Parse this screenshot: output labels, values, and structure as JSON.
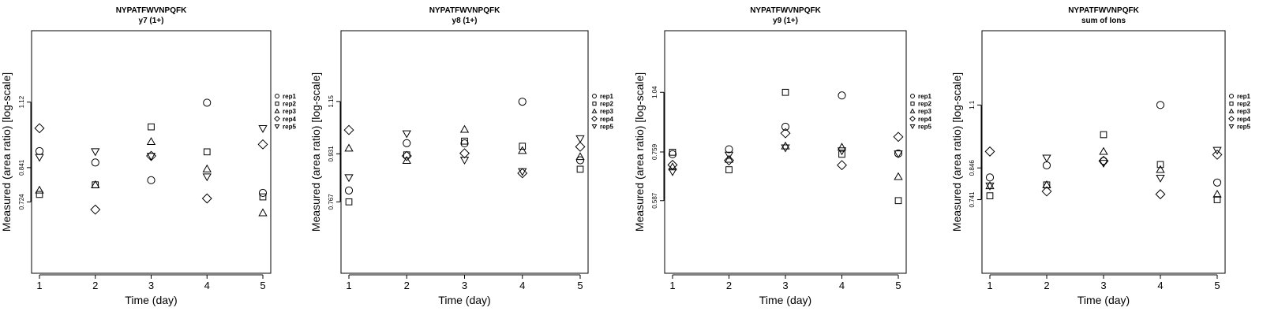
{
  "chart_data": [
    {
      "type": "scatter",
      "title": "NYPATFWVNPQFK",
      "subtitle": "y7 (1+)",
      "xlabel": "Time (day)",
      "ylabel": "Measured (area ratio) [log-scale]",
      "x": [
        1,
        2,
        3,
        4,
        5
      ],
      "x_ticks": [
        "1",
        "2",
        "3",
        "4",
        "5"
      ],
      "y_ticks": [
        0.724,
        0.841,
        1.12
      ],
      "y_tick_labels": [
        "0.724",
        "0.841",
        "1.12"
      ],
      "ylim": [
        0.53,
        1.53
      ],
      "series": [
        {
          "name": "rep1",
          "marker": "circle",
          "values": [
            0.904,
            0.86,
            0.796,
            1.117,
            0.753
          ]
        },
        {
          "name": "rep2",
          "marker": "square",
          "values": [
            0.748,
            0.78,
            1.005,
            0.901,
            0.74
          ]
        },
        {
          "name": "rep3",
          "marker": "triangle-up",
          "values": [
            0.762,
            0.78,
            0.942,
            0.836,
            0.69
          ]
        },
        {
          "name": "rep4",
          "marker": "diamond",
          "values": [
            0.999,
            0.7,
            0.885,
            0.735,
            0.931
          ]
        },
        {
          "name": "rep5",
          "marker": "triangle-down",
          "values": [
            0.88,
            0.902,
            0.884,
            0.808,
            0.998
          ]
        }
      ]
    },
    {
      "type": "scatter",
      "title": "NYPATFWVNPQFK",
      "subtitle": "y8 (1+)",
      "xlabel": "Time (day)",
      "ylabel": "Measured (area ratio) [log-scale]",
      "x": [
        1,
        2,
        3,
        4,
        5
      ],
      "x_ticks": [
        "1",
        "2",
        "3",
        "4",
        "5"
      ],
      "y_ticks": [
        0.767,
        0.931,
        1.15
      ],
      "y_tick_labels": [
        "0.767",
        "0.931",
        "1.15"
      ],
      "ylim": [
        0.575,
        1.53
      ],
      "series": [
        {
          "name": "rep1",
          "marker": "circle",
          "values": [
            0.803,
            0.972,
            0.971,
            1.149,
            0.907
          ]
        },
        {
          "name": "rep2",
          "marker": "square",
          "values": [
            0.767,
            0.927,
            0.98,
            0.96,
            0.875
          ]
        },
        {
          "name": "rep3",
          "marker": "triangle-up",
          "values": [
            0.952,
            0.906,
            1.027,
            0.943,
            0.92
          ]
        },
        {
          "name": "rep4",
          "marker": "diamond",
          "values": [
            1.025,
            0.923,
            0.933,
            0.861,
            0.958
          ]
        },
        {
          "name": "rep5",
          "marker": "triangle-down",
          "values": [
            0.846,
            1.01,
            0.908,
            0.867,
            0.99
          ]
        }
      ]
    },
    {
      "type": "scatter",
      "title": "NYPATFWVNPQFK",
      "subtitle": "y9 (1+)",
      "xlabel": "Time (day)",
      "ylabel": "Measured (area ratio) [log-scale]",
      "x": [
        1,
        2,
        3,
        4,
        5
      ],
      "x_ticks": [
        "1",
        "2",
        "3",
        "4",
        "5"
      ],
      "y_ticks": [
        0.587,
        0.759,
        1.04
      ],
      "y_tick_labels": [
        "0.587",
        "0.759",
        "1.04"
      ],
      "ylim": [
        0.4,
        1.44
      ],
      "series": [
        {
          "name": "rep1",
          "marker": "circle",
          "values": [
            0.75,
            0.77,
            0.867,
            1.023,
            0.753
          ]
        },
        {
          "name": "rep2",
          "marker": "square",
          "values": [
            0.758,
            0.691,
            1.04,
            0.75,
            0.587
          ]
        },
        {
          "name": "rep3",
          "marker": "triangle-up",
          "values": [
            0.701,
            0.73,
            0.783,
            0.778,
            0.666
          ]
        },
        {
          "name": "rep4",
          "marker": "diamond",
          "values": [
            0.709,
            0.726,
            0.838,
            0.708,
            0.822
          ]
        },
        {
          "name": "rep5",
          "marker": "triangle-down",
          "values": [
            0.684,
            0.747,
            0.776,
            0.764,
            0.752
          ]
        }
      ]
    },
    {
      "type": "scatter",
      "title": "NYPATFWVNPQFK",
      "subtitle": "sum of Ions",
      "xlabel": "Time (day)",
      "ylabel": "Measured (area ratio) [log-scale]",
      "x": [
        1,
        2,
        3,
        4,
        5
      ],
      "x_ticks": [
        "1",
        "2",
        "3",
        "4",
        "5"
      ],
      "y_ticks": [
        0.741,
        0.846,
        1.1
      ],
      "y_tick_labels": [
        "0.741",
        "0.846",
        "1.1"
      ],
      "ylim": [
        0.545,
        1.5
      ],
      "series": [
        {
          "name": "rep1",
          "marker": "circle",
          "values": [
            0.813,
            0.855,
            0.871,
            1.1,
            0.796
          ]
        },
        {
          "name": "rep2",
          "marker": "square",
          "values": [
            0.753,
            0.788,
            0.972,
            0.858,
            0.741
          ]
        },
        {
          "name": "rep3",
          "marker": "triangle-up",
          "values": [
            0.785,
            0.788,
            0.906,
            0.84,
            0.758
          ]
        },
        {
          "name": "rep4",
          "marker": "diamond",
          "values": [
            0.906,
            0.767,
            0.871,
            0.758,
            0.894
          ]
        },
        {
          "name": "rep5",
          "marker": "triangle-down",
          "values": [
            0.785,
            0.882,
            0.863,
            0.811,
            0.911
          ]
        }
      ]
    }
  ]
}
